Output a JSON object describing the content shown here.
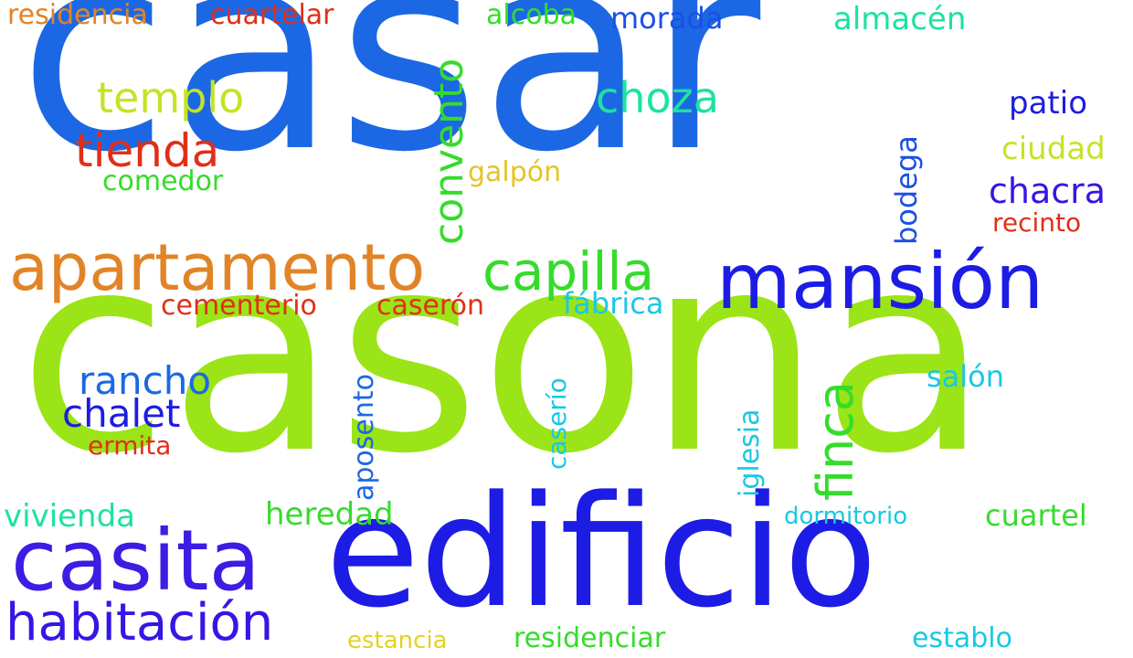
{
  "words": [
    {
      "text": "casar",
      "color": "#1c68e4"
    },
    {
      "text": "casona",
      "color": "#9be417"
    },
    {
      "text": "edificio",
      "color": "#1d1ce4"
    },
    {
      "text": "apartamento",
      "color": "#e18427"
    },
    {
      "text": "mansión",
      "color": "#1d1ce4"
    },
    {
      "text": "casita",
      "color": "#3d1ce4"
    },
    {
      "text": "habitación",
      "color": "#3417e4"
    },
    {
      "text": "capilla",
      "color": "#35dc2b"
    },
    {
      "text": "templo",
      "color": "#c3e427"
    },
    {
      "text": "tienda",
      "color": "#e02f17"
    },
    {
      "text": "choza",
      "color": "#1de39c"
    },
    {
      "text": "convento",
      "color": "#35dc2b"
    },
    {
      "text": "finca",
      "color": "#35dc2b"
    },
    {
      "text": "rancho",
      "color": "#1c68e4"
    },
    {
      "text": "chalet",
      "color": "#1d1ce4"
    },
    {
      "text": "residencia",
      "color": "#e18427"
    },
    {
      "text": "cuartelar",
      "color": "#e02f17"
    },
    {
      "text": "alcoba",
      "color": "#35dc2b"
    },
    {
      "text": "morada",
      "color": "#1c4fe4"
    },
    {
      "text": "almacén",
      "color": "#1de39c"
    },
    {
      "text": "patio",
      "color": "#1d1ce4"
    },
    {
      "text": "ciudad",
      "color": "#c3e427"
    },
    {
      "text": "chacra",
      "color": "#3417e4"
    },
    {
      "text": "recinto",
      "color": "#e02f17"
    },
    {
      "text": "bodega",
      "color": "#1c4fe4"
    },
    {
      "text": "comedor",
      "color": "#35dc2b"
    },
    {
      "text": "galpón",
      "color": "#e4c427"
    },
    {
      "text": "cementerio",
      "color": "#e02f17"
    },
    {
      "text": "caserón",
      "color": "#e02f17"
    },
    {
      "text": "fábrica",
      "color": "#19c8e4"
    },
    {
      "text": "aposento",
      "color": "#1c68e4"
    },
    {
      "text": "caserío",
      "color": "#19c8e4"
    },
    {
      "text": "iglesia",
      "color": "#19c8e4"
    },
    {
      "text": "salón",
      "color": "#19c8e4"
    },
    {
      "text": "ermita",
      "color": "#e02f17"
    },
    {
      "text": "vivienda",
      "color": "#1de39c"
    },
    {
      "text": "heredad",
      "color": "#35dc2b"
    },
    {
      "text": "dormitorio",
      "color": "#19c8e4"
    },
    {
      "text": "cuartel",
      "color": "#35dc2b"
    },
    {
      "text": "estancia",
      "color": "#e4d227"
    },
    {
      "text": "residenciar",
      "color": "#35dc2b"
    },
    {
      "text": "establo",
      "color": "#19c8e4"
    }
  ]
}
